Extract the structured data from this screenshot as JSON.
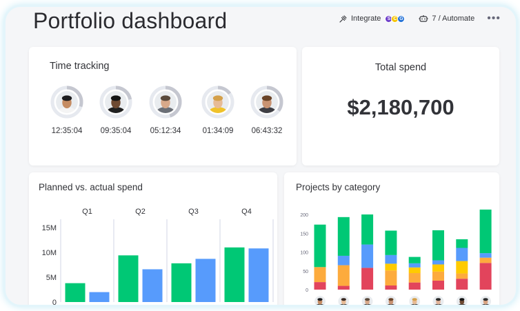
{
  "header": {
    "title": "Portfolio dashboard",
    "integrate_label": "Integrate",
    "automate_label": "7 / Automate",
    "more_label": "•••",
    "integration_badges": [
      {
        "letter": "S",
        "color": "#6c3cc9"
      },
      {
        "letter": "C",
        "color": "#f5c400"
      },
      {
        "letter": "G",
        "color": "#1f6fd6"
      }
    ]
  },
  "time_tracking": {
    "title": "Time tracking",
    "people": [
      {
        "time": "12:35:04",
        "progress": 0.3,
        "skin": "#c58c63",
        "hair": "#1d1d1f",
        "shirt": "#f4f4f4"
      },
      {
        "time": "09:35:04",
        "progress": 0.22,
        "skin": "#6e4a32",
        "hair": "#141414",
        "shirt": "#202020"
      },
      {
        "time": "05:12:34",
        "progress": 0.45,
        "skin": "#d8a98a",
        "hair": "#5a4a3c",
        "shirt": "#6b6f76"
      },
      {
        "time": "01:34:09",
        "progress": 0.15,
        "skin": "#e7bb95",
        "hair": "#d4a04a",
        "shirt": "#f0c22a"
      },
      {
        "time": "06:43:32",
        "progress": 0.35,
        "skin": "#c99372",
        "hair": "#6a4428",
        "shirt": "#3e3e44"
      }
    ]
  },
  "total_spend": {
    "title": "Total spend",
    "value": "$2,180,700"
  },
  "planned_vs_actual": {
    "title": "Planned vs. actual spend",
    "chart_data": {
      "type": "bar",
      "categories": [
        "Q1",
        "Q2",
        "Q3",
        "Q4"
      ],
      "series": [
        {
          "values": [
            3.8,
            9.4,
            7.8,
            11
          ],
          "color": "#00c875"
        },
        {
          "values": [
            2,
            6.6,
            8.7,
            10.8
          ],
          "color": "#579bfc"
        }
      ],
      "yticks": [
        "0",
        "5M",
        "10M",
        "15M"
      ],
      "ytick_values": [
        0,
        5,
        10,
        15
      ],
      "ylim": [
        0,
        15
      ]
    }
  },
  "projects_by_category": {
    "title": "Projects by category",
    "chart_data": {
      "type": "bar",
      "stacked": true,
      "yticks": [
        "0",
        "50",
        "100",
        "150",
        "200"
      ],
      "ytick_values": [
        0,
        50,
        100,
        150,
        200
      ],
      "ylim": [
        0,
        200
      ],
      "segment_colors": [
        "#e2445c",
        "#fdab3d",
        "#ffcb00",
        "#579bfc",
        "#00c875"
      ],
      "bars": [
        [
          20,
          40,
          0,
          0,
          113
        ],
        [
          10,
          55,
          0,
          25,
          103
        ],
        [
          58,
          0,
          0,
          62,
          80
        ],
        [
          11,
          40,
          18,
          23,
          65
        ],
        [
          19,
          25,
          15,
          11,
          17
        ],
        [
          24,
          24,
          19,
          11,
          80
        ],
        [
          29,
          14,
          33,
          35,
          23
        ],
        [
          71,
          14,
          0,
          12,
          116
        ]
      ],
      "avatars": [
        {
          "skin": "#c58c63",
          "hair": "#1d1d1f"
        },
        {
          "skin": "#e7bb95",
          "hair": "#3a2a22"
        },
        {
          "skin": "#d8a98a",
          "hair": "#5a4a3c"
        },
        {
          "skin": "#c99372",
          "hair": "#6a4428"
        },
        {
          "skin": "#e7bb95",
          "hair": "#d4a04a"
        },
        {
          "skin": "#e2b49a",
          "hair": "#2a2a2a"
        },
        {
          "skin": "#6e4a32",
          "hair": "#141414"
        },
        {
          "skin": "#d9a482",
          "hair": "#2c2c2c"
        }
      ]
    }
  }
}
